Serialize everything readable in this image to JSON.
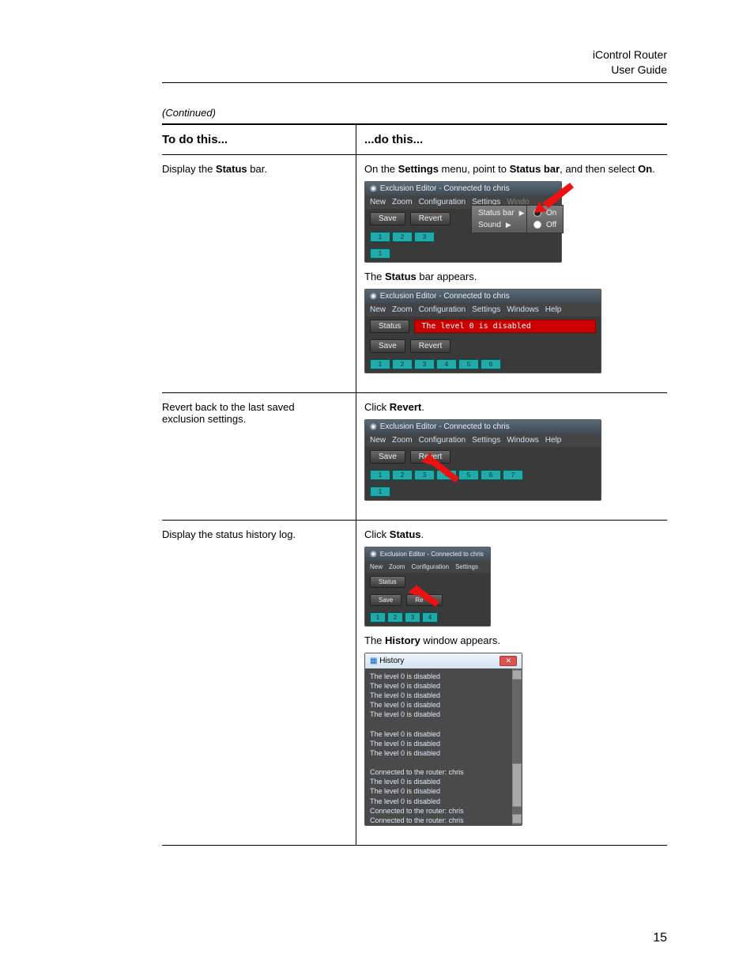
{
  "header": {
    "product": "iControl Router",
    "subtitle": "User Guide"
  },
  "continued": "(Continued)",
  "col1": "To do this...",
  "col2": "...do this...",
  "page_number": "15",
  "row1": {
    "left_pre": "Display the ",
    "left_bold": "Status",
    "left_post": " bar.",
    "instr1_pre": "On the ",
    "instr1_b1": "Settings",
    "instr1_mid": " menu, point to ",
    "instr1_b2": "Status bar",
    "instr1_mid2": ", and then select ",
    "instr1_b3": "On",
    "instr1_post": ".",
    "instr2_pre": "The ",
    "instr2_b": "Status",
    "instr2_post": " bar appears.",
    "win_title": "Exclusion Editor - Connected to chris",
    "menu": {
      "new": "New",
      "zoom": "Zoom",
      "config": "Configuration",
      "settings": "Settings",
      "windows": "Windows",
      "help": "Help"
    },
    "save": "Save",
    "revert": "Revert",
    "status_btn": "Status",
    "sub_statusbar": "Status bar",
    "sub_sound": "Sound",
    "sub_on": "On",
    "sub_off": "Off",
    "status_text": "The level 0 is disabled"
  },
  "row2": {
    "left": "Revert back to the last saved exclusion settings.",
    "instr_pre": "Click ",
    "instr_b": "Revert",
    "instr_post": "."
  },
  "row3": {
    "left": "Display the status history log.",
    "instr1_pre": "Click ",
    "instr1_b": "Status",
    "instr1_post": ".",
    "instr2_pre": "The ",
    "instr2_b": "History",
    "instr2_post": " window appears.",
    "hist_title": "History",
    "hist_lines": [
      "The level 0 is disabled",
      "The level 0 is disabled",
      "The level 0 is disabled",
      "The level 0 is disabled",
      "The level 0 is disabled",
      "",
      "The level 0 is disabled",
      "The level 0 is disabled",
      "The level 0 is disabled",
      "",
      "Connected to the router: chris",
      "The level 0 is disabled",
      "The level 0 is disabled",
      "The level 0 is disabled",
      "Connected to the router: chris",
      "Connected to the router: chris",
      "Connected to the router: chris"
    ]
  }
}
